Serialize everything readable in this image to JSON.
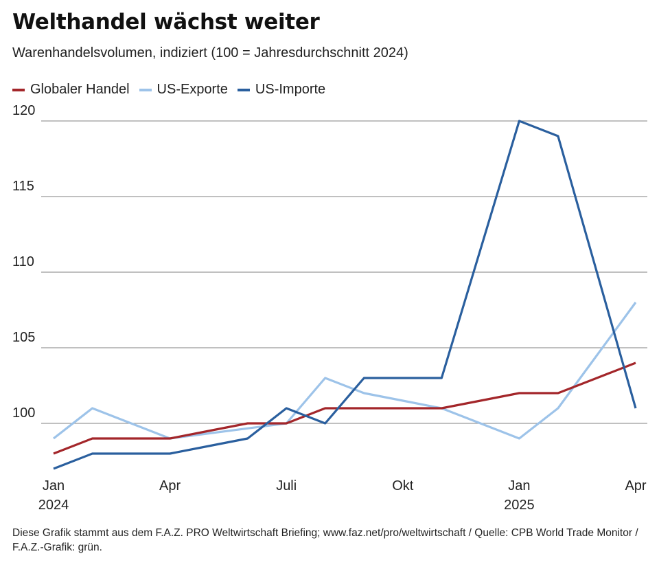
{
  "chart_data": {
    "type": "line",
    "title": "Welthandel wächst weiter",
    "subtitle": "Warenhandelsvolumen, indiziert (100 = Jahresdurchschnitt 2024)",
    "x": [
      "2024-01",
      "2024-02",
      "2024-03",
      "2024-04",
      "2024-05",
      "2024-06",
      "2024-07",
      "2024-08",
      "2024-09",
      "2024-10",
      "2024-11",
      "2024-12",
      "2025-01",
      "2025-02",
      "2025-03",
      "2025-04"
    ],
    "x_ticks": [
      {
        "label": "Jan",
        "sublabel": "2024",
        "x": "2024-01"
      },
      {
        "label": "Apr",
        "sublabel": "",
        "x": "2024-04"
      },
      {
        "label": "Juli",
        "sublabel": "",
        "x": "2024-07"
      },
      {
        "label": "Okt",
        "sublabel": "",
        "x": "2024-10"
      },
      {
        "label": "Jan",
        "sublabel": "2025",
        "x": "2025-01"
      },
      {
        "label": "Apr",
        "sublabel": "",
        "x": "2025-04"
      }
    ],
    "y_ticks": [
      100,
      105,
      110,
      115,
      120
    ],
    "ylim": [
      97,
      120
    ],
    "grid": true,
    "legend_position": "top-left",
    "series": [
      {
        "name": "Globaler Handel",
        "color": "#a3262a",
        "values": [
          98,
          99,
          99,
          99,
          99.5,
          100,
          100,
          101,
          101,
          101,
          101,
          101.5,
          102,
          102,
          103,
          104
        ]
      },
      {
        "name": "US-Exporte",
        "color": "#9dc3e9",
        "values": [
          99,
          101,
          100,
          99,
          null,
          null,
          100,
          103,
          102,
          101.5,
          101,
          100,
          99,
          101,
          104.5,
          108
        ]
      },
      {
        "name": "US-Importe",
        "color": "#2a5f9e",
        "values": [
          97,
          98,
          98,
          98,
          98.5,
          99,
          101,
          100,
          103,
          103,
          103,
          111.5,
          120,
          119,
          110,
          101
        ]
      }
    ]
  },
  "footer": "Diese Grafik stammt aus dem F.A.Z. PRO Weltwirtschaft Briefing; www.faz.net/pro/weltwirtschaft / Quelle: CPB World Trade Monitor / F.A.Z.-Grafik: grün."
}
